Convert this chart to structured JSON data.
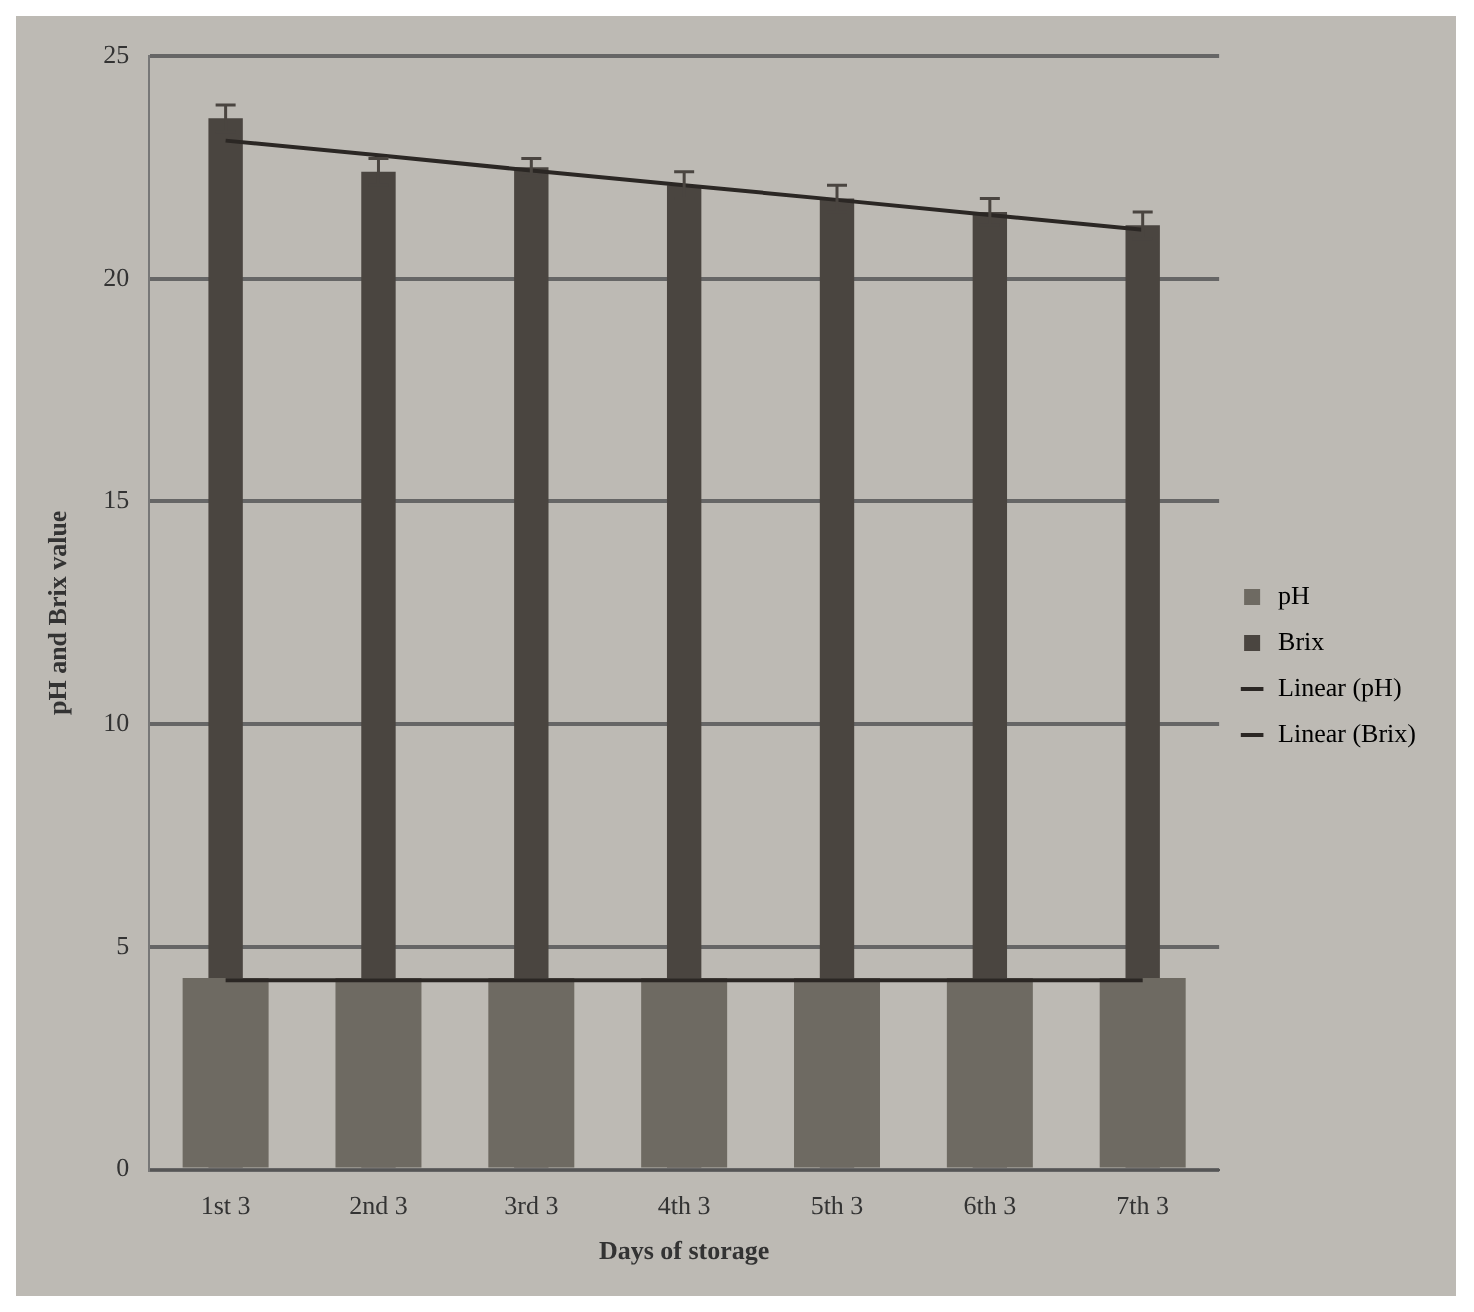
{
  "chart_data": {
    "type": "bar",
    "xlabel": "Days of storage",
    "ylabel": "pH and Brix value",
    "categories": [
      "1st 3",
      "2nd 3",
      "3rd 3",
      "4th 3",
      "5th 3",
      "6th 3",
      "7th 3"
    ],
    "series": [
      {
        "name": "pH",
        "color": "#6e6a62",
        "values": [
          4.3,
          4.3,
          4.3,
          4.3,
          4.3,
          4.3,
          4.3
        ]
      },
      {
        "name": "Brix",
        "color": "#4a4540",
        "values": [
          23.6,
          22.4,
          22.5,
          22.1,
          21.8,
          21.5,
          21.2
        ],
        "errors": [
          0.3,
          0.3,
          0.2,
          0.3,
          0.3,
          0.3,
          0.3
        ]
      },
      {
        "name": "Linear (pH)",
        "type": "line",
        "color": "#2b2724",
        "values": [
          4.25,
          4.25,
          4.25,
          4.25,
          4.25,
          4.25,
          4.25
        ]
      },
      {
        "name": "Linear (Brix)",
        "type": "line",
        "color": "#2b2724",
        "values": [
          23.1,
          22.77,
          22.43,
          22.1,
          21.77,
          21.43,
          21.1
        ]
      }
    ],
    "ylim": [
      0,
      25
    ],
    "yticks": [
      0,
      5,
      10,
      15,
      20,
      25
    ],
    "grid": "y",
    "legend": "right"
  }
}
